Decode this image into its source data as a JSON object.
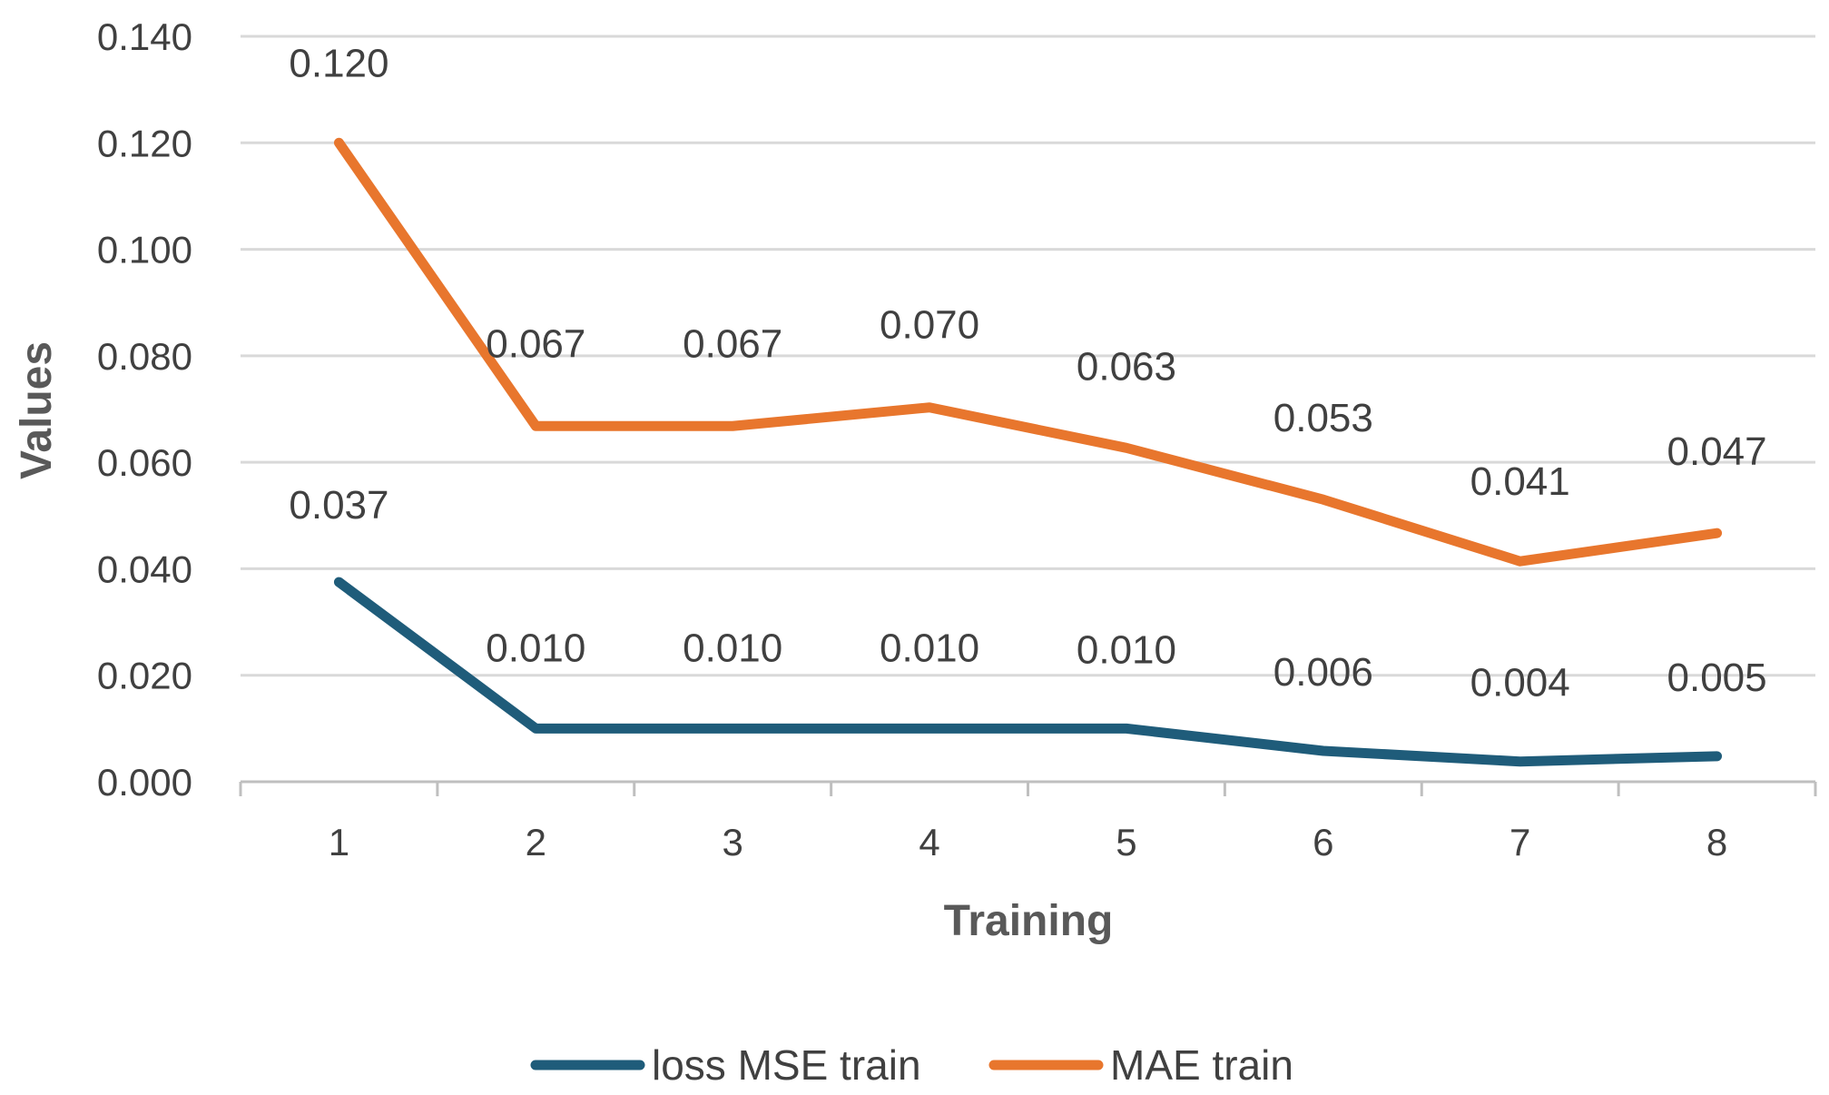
{
  "chart_data": {
    "type": "line",
    "title": "",
    "xlabel": "Training",
    "ylabel": "Values",
    "categories": [
      "1",
      "2",
      "3",
      "4",
      "5",
      "6",
      "7",
      "8"
    ],
    "ylim": [
      0,
      0.14
    ],
    "yticks": [
      "0.000",
      "0.020",
      "0.040",
      "0.060",
      "0.080",
      "0.100",
      "0.120",
      "0.140"
    ],
    "yticks_values": [
      0,
      0.02,
      0.04,
      0.06,
      0.08,
      0.1,
      0.12,
      0.14
    ],
    "grid": true,
    "legend_position": "bottom",
    "series": [
      {
        "name": "loss MSE  train",
        "color": "#1f5c7a",
        "values": [
          0.0375,
          0.01,
          0.01,
          0.01,
          0.01,
          0.0058,
          0.0038,
          0.0048
        ],
        "labels": [
          "0.037",
          "0.010",
          "0.010",
          "0.010",
          "0.010",
          "0.006",
          "0.004",
          "0.005"
        ]
      },
      {
        "name": "MAE train",
        "color": "#e8762d",
        "values": [
          0.12,
          0.0668,
          0.0668,
          0.0703,
          0.0627,
          0.053,
          0.0414,
          0.0467
        ],
        "labels": [
          "0.120",
          "0.067",
          "0.067",
          "0.070",
          "0.063",
          "0.053",
          "0.041",
          "0.047"
        ]
      }
    ]
  }
}
